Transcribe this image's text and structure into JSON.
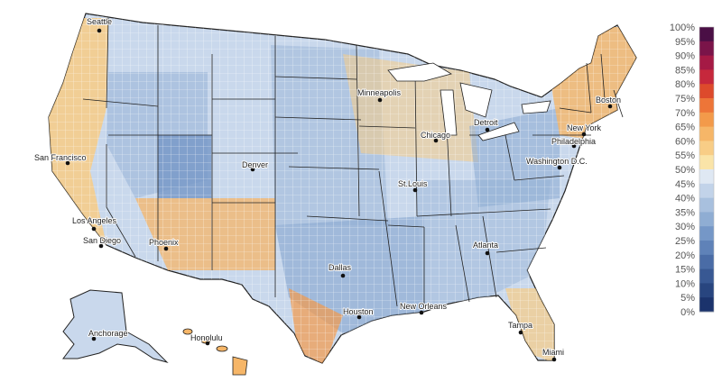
{
  "map": {
    "type": "choropleth",
    "region": "United States counties",
    "colors": {
      "land_default": "#c9d8ec",
      "state_border": "#222222",
      "county_border": "#ffffff",
      "water": "#ffffff"
    },
    "cities": [
      {
        "name": "Seattle"
      },
      {
        "name": "San Francisco"
      },
      {
        "name": "Los Angeles"
      },
      {
        "name": "San Diego"
      },
      {
        "name": "Phoenix"
      },
      {
        "name": "Denver"
      },
      {
        "name": "Minneapolis"
      },
      {
        "name": "Chicago"
      },
      {
        "name": "Detroit"
      },
      {
        "name": "St.Louis"
      },
      {
        "name": "Dallas"
      },
      {
        "name": "Houston"
      },
      {
        "name": "New Orleans"
      },
      {
        "name": "Atlanta"
      },
      {
        "name": "Tampa"
      },
      {
        "name": "Miami"
      },
      {
        "name": "Washington D.C."
      },
      {
        "name": "Philadelphia"
      },
      {
        "name": "New York"
      },
      {
        "name": "Boston"
      },
      {
        "name": "Anchorage"
      },
      {
        "name": "Honolulu"
      }
    ]
  },
  "legend": {
    "orientation": "vertical",
    "placement": "right",
    "labels": [
      "100%",
      "95%",
      "90%",
      "85%",
      "80%",
      "75%",
      "70%",
      "65%",
      "60%",
      "55%",
      "50%",
      "45%",
      "40%",
      "35%",
      "30%",
      "25%",
      "20%",
      "15%",
      "10%",
      "5%",
      "0%"
    ],
    "colors": [
      "#4a0f45",
      "#7a1449",
      "#a51a45",
      "#c6283c",
      "#dd4a2c",
      "#ed7538",
      "#f39a4a",
      "#f6b668",
      "#f8cd86",
      "#fae4a8",
      "#dfe8f3",
      "#c2d3e9",
      "#a8c0de",
      "#8fadd3",
      "#7597c7",
      "#5f82b8",
      "#4a6ca6",
      "#385893",
      "#28457f",
      "#1b336c"
    ]
  }
}
